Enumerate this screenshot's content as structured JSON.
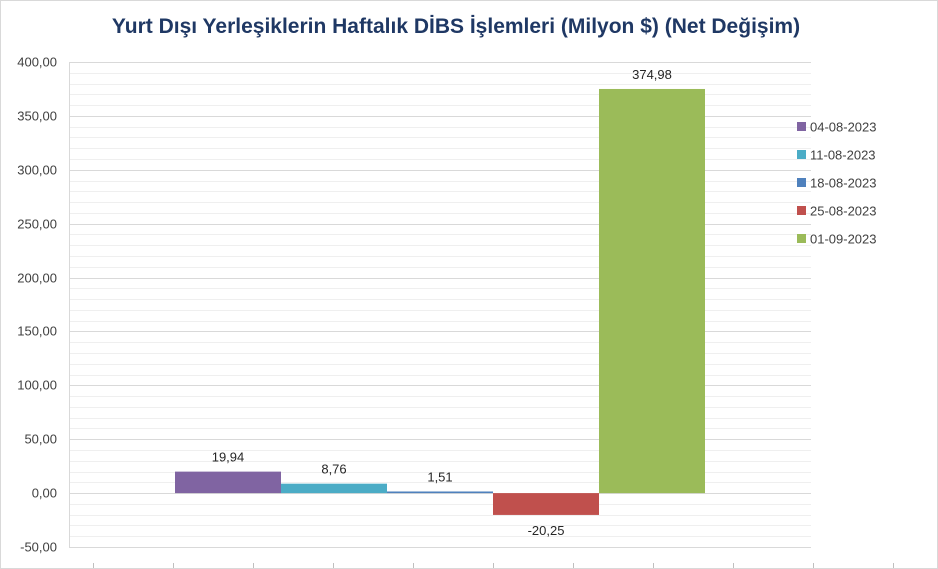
{
  "chart_data": {
    "type": "bar",
    "title": "Yurt Dışı Yerleşiklerin Haftalık DİBS İşlemleri (Milyon $) (Net Değişim)",
    "xlabel": "",
    "ylabel": "",
    "ylim": [
      -50,
      400
    ],
    "yticks": [
      400,
      350,
      300,
      250,
      200,
      150,
      100,
      50,
      0,
      -50
    ],
    "ytick_labels": [
      "400,00",
      "350,00",
      "300,00",
      "250,00",
      "200,00",
      "150,00",
      "100,00",
      "50,00",
      "0,00",
      "-50,00"
    ],
    "grid": true,
    "legend_position": "right",
    "series": [
      {
        "name": "04-08-2023",
        "value": 19.94,
        "label": "19,94",
        "color": "#8064a2"
      },
      {
        "name": "11-08-2023",
        "value": 8.76,
        "label": "8,76",
        "color": "#4bacc6"
      },
      {
        "name": "18-08-2023",
        "value": 1.51,
        "label": "1,51",
        "color": "#4f81bd"
      },
      {
        "name": "25-08-2023",
        "value": -20.25,
        "label": "-20,25",
        "color": "#c0504d"
      },
      {
        "name": "01-09-2023",
        "value": 374.98,
        "label": "374,98",
        "color": "#9bbb59"
      }
    ]
  }
}
